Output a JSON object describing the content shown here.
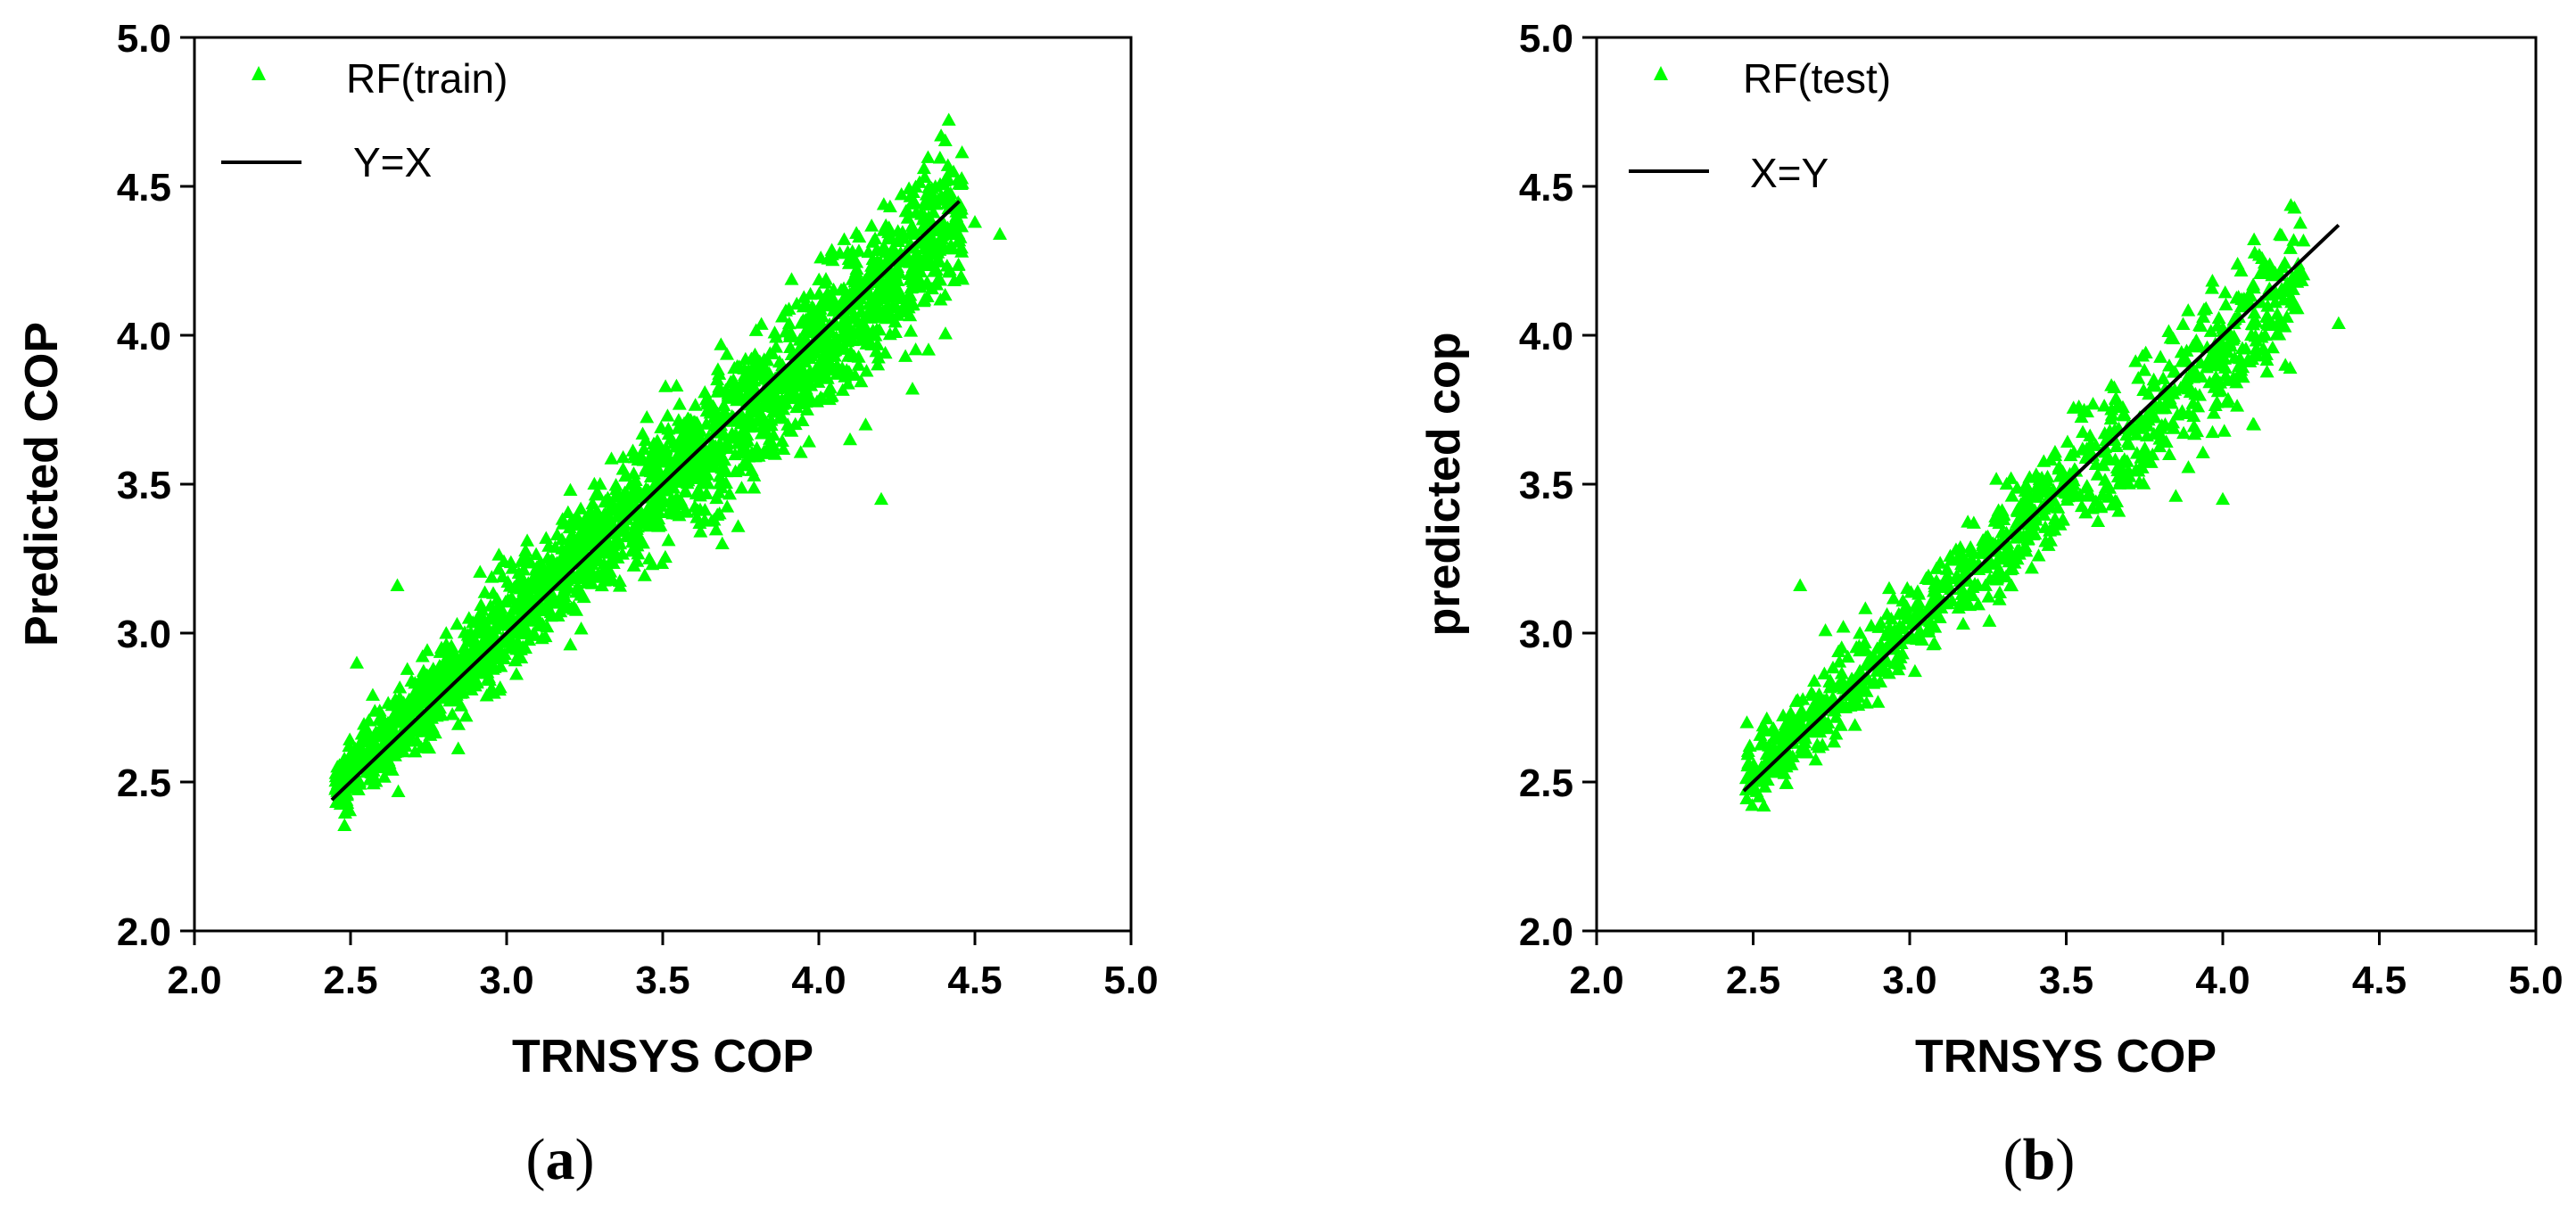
{
  "chart_data": [
    {
      "type": "scatter",
      "panel_label": {
        "open": "(",
        "letter": "a",
        "close": ")"
      },
      "title": "",
      "xlabel": "TRNSYS COP",
      "ylabel": "Predicted COP",
      "xlim": [
        2.0,
        5.0
      ],
      "ylim": [
        2.0,
        5.0
      ],
      "xticks": [
        "2.0",
        "2.5",
        "3.0",
        "3.5",
        "4.0",
        "4.5",
        "5.0"
      ],
      "yticks": [
        "2.0",
        "2.5",
        "3.0",
        "3.5",
        "4.0",
        "4.5",
        "5.0"
      ],
      "grid": false,
      "legend_position": "top-left",
      "scatter_series": {
        "name": "RF(train)",
        "color": "#00ff00",
        "marker": "triangle-icon",
        "x_range": [
          2.45,
          4.58
        ],
        "approx_points": 2200,
        "typical_deviation": [
          -0.4,
          0.4
        ],
        "outlier_points": [
          [
            2.65,
            3.16
          ],
          [
            2.52,
            2.9
          ],
          [
            4.2,
            3.45
          ],
          [
            4.3,
            3.82
          ],
          [
            4.5,
            4.38
          ],
          [
            4.58,
            4.34
          ],
          [
            4.15,
            3.7
          ],
          [
            4.1,
            3.65
          ]
        ]
      },
      "line_series": {
        "name": "Y=X",
        "color": "#000000",
        "x": [
          2.44,
          4.45
        ],
        "y": [
          2.44,
          4.45
        ]
      }
    },
    {
      "type": "scatter",
      "panel_label": {
        "open": "(",
        "letter": "b",
        "close": ")"
      },
      "title": "",
      "xlabel": "TRNSYS COP",
      "ylabel": "predicted cop",
      "xlim": [
        2.0,
        5.0
      ],
      "ylim": [
        2.0,
        5.0
      ],
      "xticks": [
        "2.0",
        "2.5",
        "3.0",
        "3.5",
        "4.0",
        "4.5",
        "5.0"
      ],
      "yticks": [
        "2.0",
        "2.5",
        "3.0",
        "3.5",
        "4.0",
        "4.5",
        "5.0"
      ],
      "grid": false,
      "legend_position": "top-left",
      "scatter_series": {
        "name": "RF(test)",
        "color": "#00ff00",
        "marker": "triangle-icon",
        "x_range": [
          2.47,
          4.38
        ],
        "approx_points": 950,
        "typical_deviation": [
          -0.4,
          0.4
        ],
        "outlier_points": [
          [
            2.65,
            3.16
          ],
          [
            2.48,
            2.7
          ],
          [
            4.0,
            3.45
          ],
          [
            4.37,
            4.04
          ],
          [
            4.2,
            3.9
          ],
          [
            4.1,
            3.7
          ],
          [
            3.85,
            3.46
          ]
        ]
      },
      "line_series": {
        "name": "X=Y",
        "color": "#000000",
        "x": [
          2.47,
          4.37
        ],
        "y": [
          2.47,
          4.37
        ]
      }
    }
  ]
}
